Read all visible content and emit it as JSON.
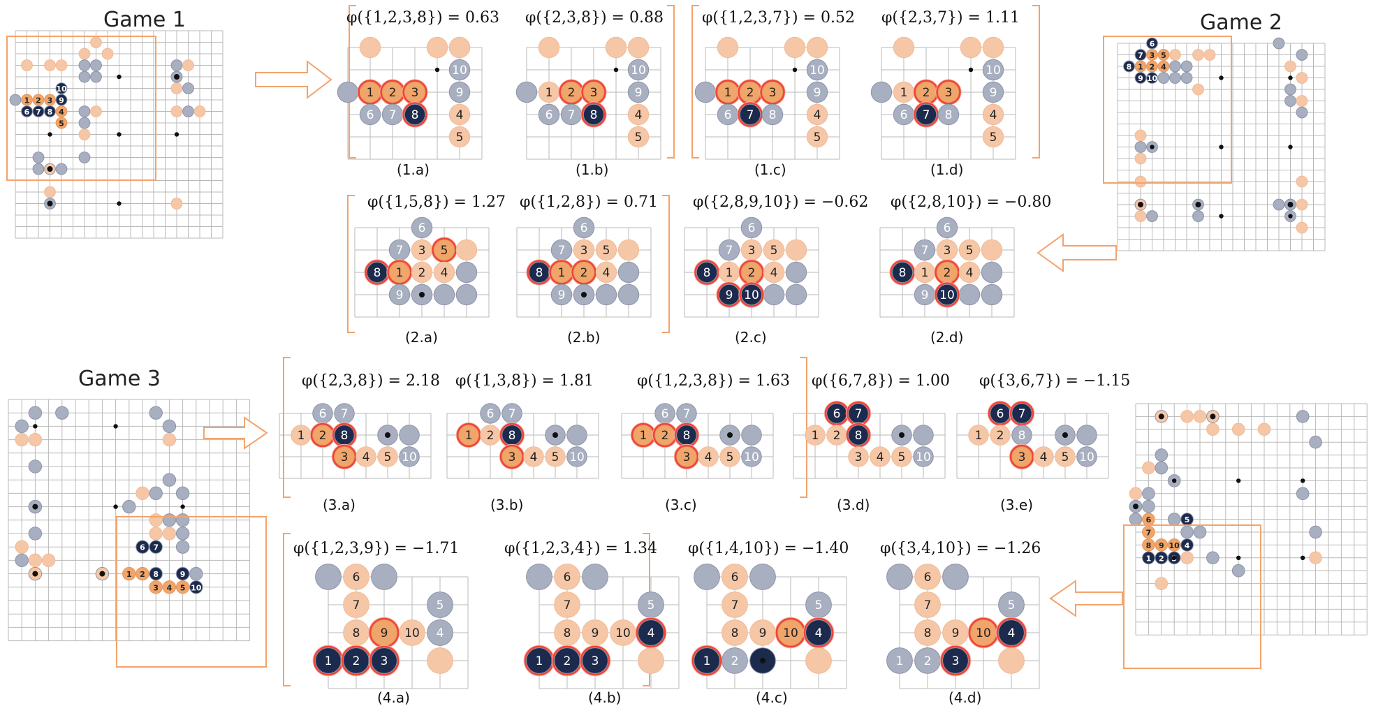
{
  "colors": {
    "black": "#1c2a4d",
    "white": "#a8afc0",
    "orange": "#f6c7a6",
    "orange_dark": "#f0a56a",
    "highlight": "#ef4436",
    "frame": "#f3a36d",
    "grid": "#b9b9b9"
  },
  "games": [
    {
      "title": "Game 1"
    },
    {
      "title": "Game 2"
    },
    {
      "title": "Game 3"
    }
  ],
  "panels": [
    {
      "id": "1a",
      "phi": "φ({1,2,3,8}) = 0.63",
      "caption": "(1.a)"
    },
    {
      "id": "1b",
      "phi": "φ({2,3,8}) = 0.88",
      "caption": "(1.b)"
    },
    {
      "id": "1c",
      "phi": "φ({1,2,3,7}) = 0.52",
      "caption": "(1.c)"
    },
    {
      "id": "1d",
      "phi": "φ({2,3,7}) = 1.11",
      "caption": "(1.d)"
    },
    {
      "id": "2a",
      "phi": "φ({1,5,8}) = 1.27",
      "caption": "(2.a)"
    },
    {
      "id": "2b",
      "phi": "φ({1,2,8}) = 0.71",
      "caption": "(2.b)"
    },
    {
      "id": "2c",
      "phi": "φ({2,8,9,10}) = −0.62",
      "caption": "(2.c)"
    },
    {
      "id": "2d",
      "phi": "φ({2,8,10}) = −0.80",
      "caption": "(2.d)"
    },
    {
      "id": "3a",
      "phi": "φ({2,3,8}) = 2.18",
      "caption": "(3.a)"
    },
    {
      "id": "3b",
      "phi": "φ({1,3,8}) = 1.81",
      "caption": "(3.b)"
    },
    {
      "id": "3c",
      "phi": "φ({1,2,3,8}) = 1.63",
      "caption": "(3.c)"
    },
    {
      "id": "3d",
      "phi": "φ({6,7,8}) = 1.00",
      "caption": "(3.d)"
    },
    {
      "id": "3e",
      "phi": "φ({3,6,7}) = −1.15",
      "caption": "(3.e)"
    },
    {
      "id": "4a",
      "phi": "φ({1,2,3,9}) = −1.71",
      "caption": "(4.a)"
    },
    {
      "id": "4b",
      "phi": "φ({1,2,3,4}) = 1.34",
      "caption": "(4.b)"
    },
    {
      "id": "4c",
      "phi": "φ({1,4,10}) = −1.40",
      "caption": "(4.c)"
    },
    {
      "id": "4d",
      "phi": "φ({3,4,10}) = −1.26",
      "caption": "(4.d)"
    }
  ],
  "stone_labels": [
    "1",
    "2",
    "3",
    "4",
    "5",
    "6",
    "7",
    "8",
    "9",
    "10"
  ]
}
